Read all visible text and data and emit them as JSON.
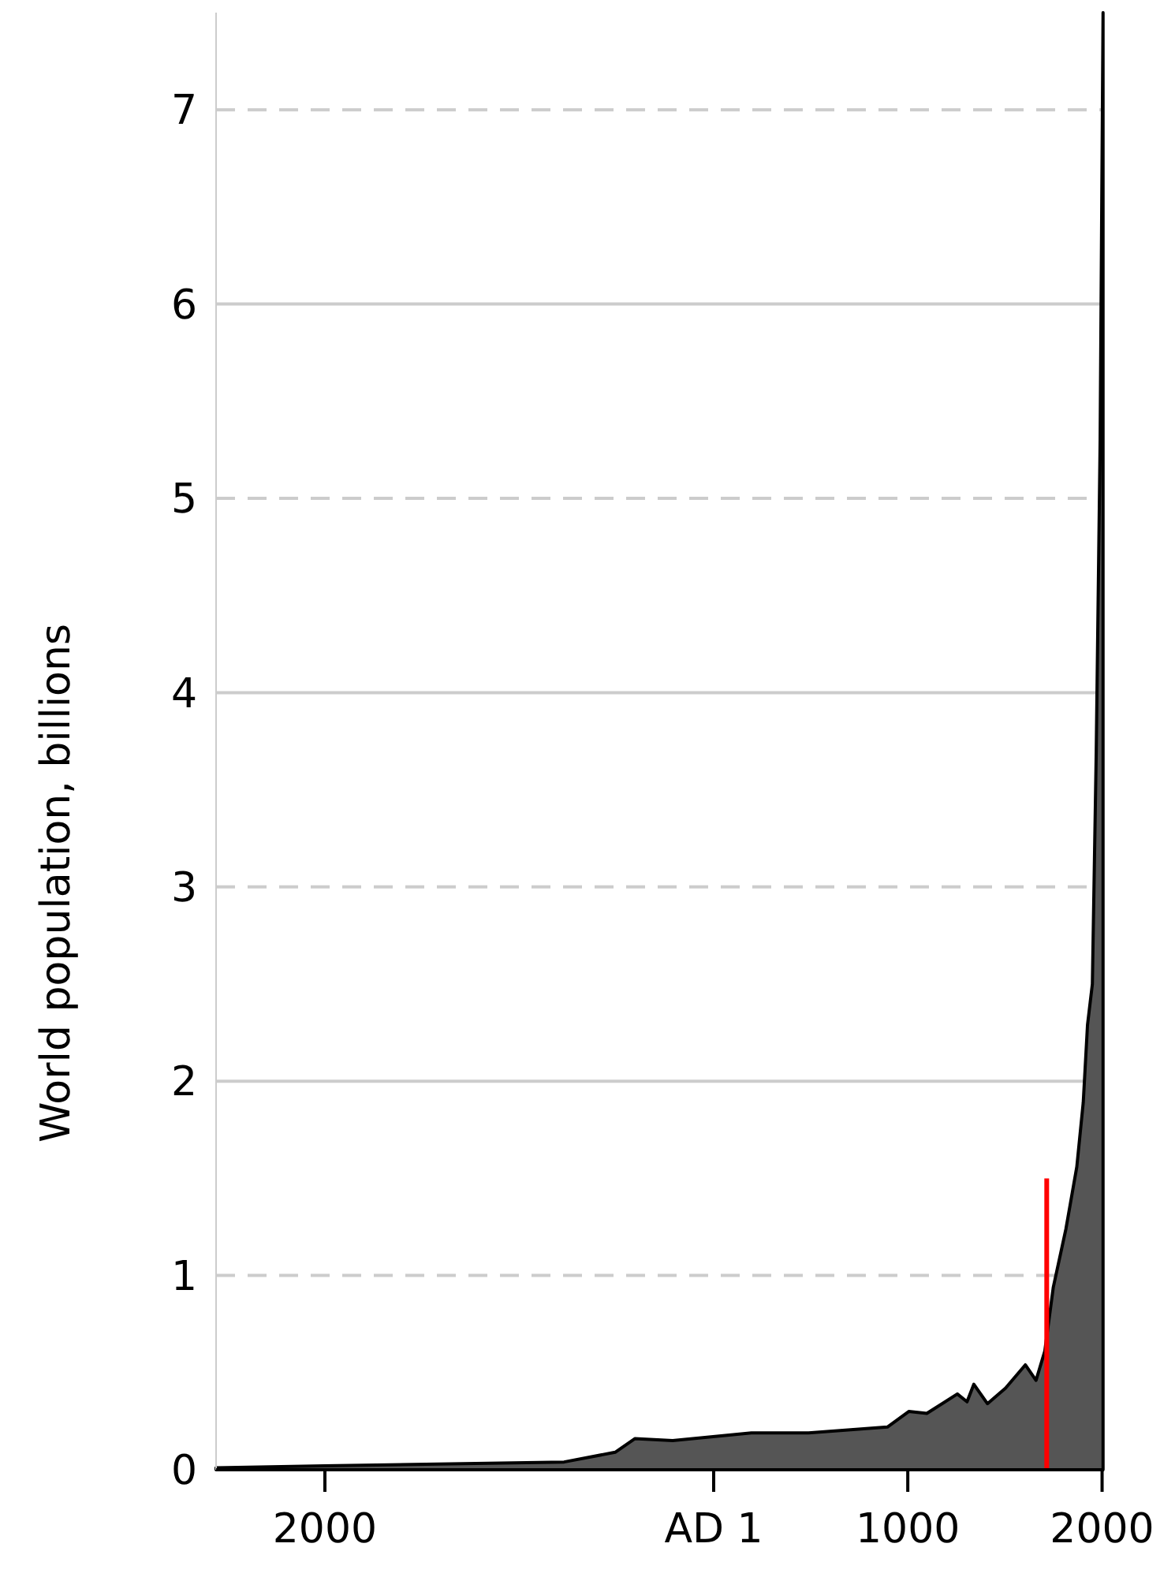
{
  "chart_data": {
    "type": "area",
    "ylabel": "World population, billions",
    "x": [
      -2560,
      -2000,
      -769,
      -506,
      -405,
      -210,
      195,
      490,
      895,
      1005,
      1098,
      1255,
      1305,
      1340,
      1410,
      1503,
      1605,
      1660,
      1705,
      1749,
      1814,
      1870,
      1903,
      1925,
      1950,
      1970,
      1990,
      2005
    ],
    "series": [
      {
        "color": "#555555",
        "values": [
          0.01,
          0.02,
          0.04,
          0.09,
          0.16,
          0.15,
          0.19,
          0.19,
          0.22,
          0.3,
          0.29,
          0.39,
          0.35,
          0.44,
          0.34,
          0.42,
          0.54,
          0.46,
          0.61,
          0.94,
          1.24,
          1.56,
          1.89,
          2.29,
          2.5,
          3.7,
          5.3,
          7.5
        ]
      },
      {
        "type": "line",
        "color": "#ff0000",
        "x": [
          1715,
          1715
        ],
        "values": [
          0,
          1.5
        ]
      }
    ],
    "xlim": [
      -2560,
      2010
    ],
    "xticks": [
      {
        "value": -2000,
        "label": "2000"
      },
      {
        "value": 1,
        "label": "AD 1"
      },
      1000,
      2000
    ],
    "ylim": [
      0,
      7.5
    ],
    "yticks": [
      0,
      1,
      2,
      3,
      4,
      5,
      6,
      7
    ],
    "grid": "y"
  }
}
